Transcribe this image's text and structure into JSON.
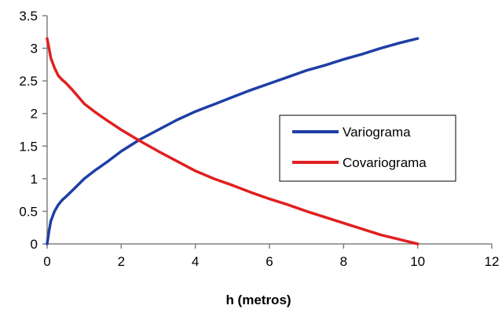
{
  "chart_data": {
    "type": "line",
    "title": "",
    "xlabel": "h (metros)",
    "ylabel": "",
    "xlim": [
      0,
      12
    ],
    "ylim": [
      0,
      3.5
    ],
    "x_ticks": [
      "0",
      "2",
      "4",
      "6",
      "8",
      "10",
      "12"
    ],
    "y_ticks": [
      "0",
      "0.5",
      "1",
      "1.5",
      "2",
      "2.5",
      "3",
      "3.5"
    ],
    "x_tick_values": [
      0,
      2,
      4,
      6,
      8,
      10,
      12
    ],
    "y_tick_values": [
      0,
      0.5,
      1,
      1.5,
      2,
      2.5,
      3,
      3.5
    ],
    "grid": false,
    "legend_position": "middle-right",
    "series": [
      {
        "name": "Variograma",
        "color": "#1f3ea6",
        "x": [
          0,
          0.05,
          0.1,
          0.2,
          0.3,
          0.4,
          0.5,
          0.7,
          1,
          1.3,
          1.6,
          2,
          2.5,
          3,
          3.5,
          4,
          4.5,
          5,
          5.5,
          6,
          6.5,
          7,
          7.5,
          8,
          8.5,
          9,
          9.5,
          10
        ],
        "values": [
          0,
          0.2,
          0.35,
          0.5,
          0.6,
          0.67,
          0.72,
          0.83,
          1.0,
          1.13,
          1.25,
          1.42,
          1.6,
          1.75,
          1.9,
          2.03,
          2.14,
          2.25,
          2.36,
          2.46,
          2.56,
          2.66,
          2.74,
          2.83,
          2.91,
          3.0,
          3.08,
          3.15
        ]
      },
      {
        "name": "Covariograma",
        "color": "#e02020",
        "x": [
          0,
          0.05,
          0.1,
          0.2,
          0.3,
          0.4,
          0.5,
          0.7,
          1,
          1.3,
          1.6,
          2,
          2.5,
          3,
          3.5,
          4,
          4.5,
          5,
          5.5,
          6,
          6.5,
          7,
          7.5,
          8,
          8.5,
          9,
          9.5,
          10
        ],
        "values": [
          3.15,
          3.0,
          2.85,
          2.7,
          2.58,
          2.52,
          2.47,
          2.35,
          2.15,
          2.02,
          1.9,
          1.75,
          1.58,
          1.42,
          1.27,
          1.12,
          1.0,
          0.9,
          0.79,
          0.69,
          0.6,
          0.5,
          0.41,
          0.32,
          0.23,
          0.14,
          0.07,
          0.0
        ]
      }
    ]
  }
}
